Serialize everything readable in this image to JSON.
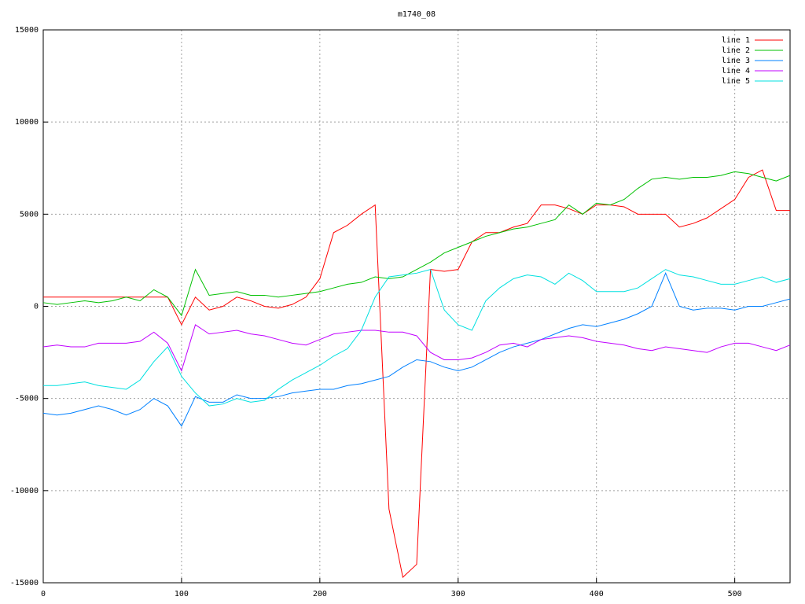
{
  "chart_data": {
    "type": "line",
    "title": "m1740_08",
    "x": [
      0,
      10,
      20,
      30,
      40,
      50,
      60,
      70,
      80,
      90,
      100,
      110,
      120,
      130,
      140,
      150,
      160,
      170,
      180,
      190,
      200,
      210,
      220,
      230,
      240,
      250,
      260,
      270,
      280,
      290,
      300,
      310,
      320,
      330,
      340,
      350,
      360,
      370,
      380,
      390,
      400,
      410,
      420,
      430,
      440,
      450,
      460,
      470,
      480,
      490,
      500,
      510,
      520,
      530,
      540
    ],
    "series": [
      {
        "name": "line 1",
        "color": "#ff0000",
        "values": [
          500,
          500,
          500,
          500,
          500,
          500,
          500,
          500,
          500,
          500,
          -1000,
          500,
          -200,
          0,
          500,
          300,
          0,
          -100,
          100,
          500,
          1500,
          4000,
          4400,
          5000,
          5500,
          -11000,
          -14700,
          -14000,
          2000,
          1900,
          2000,
          3500,
          4000,
          4000,
          4300,
          4500,
          5500,
          5500,
          5300,
          5000,
          5500,
          5500,
          5400,
          5000,
          5000,
          5000,
          4300,
          4500,
          4800,
          5300,
          5800,
          7000,
          7400,
          5200,
          5200
        ]
      },
      {
        "name": "line 2",
        "color": "#00c000",
        "values": [
          200,
          100,
          200,
          300,
          200,
          300,
          500,
          300,
          900,
          500,
          -500,
          2000,
          600,
          700,
          800,
          600,
          600,
          500,
          600,
          700,
          800,
          1000,
          1200,
          1300,
          1600,
          1500,
          1600,
          2000,
          2400,
          2900,
          3200,
          3500,
          3800,
          4000,
          4200,
          4300,
          4500,
          4700,
          5500,
          5000,
          5600,
          5500,
          5800,
          6400,
          6900,
          7000,
          6900,
          7000,
          7000,
          7100,
          7300,
          7200,
          7000,
          6800,
          7100
        ]
      },
      {
        "name": "line 3",
        "color": "#0080ff",
        "values": [
          -5800,
          -5900,
          -5800,
          -5600,
          -5400,
          -5600,
          -5900,
          -5600,
          -5000,
          -5400,
          -6500,
          -4900,
          -5200,
          -5200,
          -4800,
          -5000,
          -5000,
          -4900,
          -4700,
          -4600,
          -4500,
          -4500,
          -4300,
          -4200,
          -4000,
          -3800,
          -3300,
          -2900,
          -3000,
          -3300,
          -3500,
          -3300,
          -2900,
          -2500,
          -2200,
          -2000,
          -1800,
          -1500,
          -1200,
          -1000,
          -1100,
          -900,
          -700,
          -400,
          0,
          1800,
          0,
          -200,
          -100,
          -100,
          -200,
          0,
          0,
          200,
          400
        ]
      },
      {
        "name": "line 4",
        "color": "#c000ff",
        "values": [
          -2200,
          -2100,
          -2200,
          -2200,
          -2000,
          -2000,
          -2000,
          -1900,
          -1400,
          -2000,
          -3500,
          -1000,
          -1500,
          -1400,
          -1300,
          -1500,
          -1600,
          -1800,
          -2000,
          -2100,
          -1800,
          -1500,
          -1400,
          -1300,
          -1300,
          -1400,
          -1400,
          -1600,
          -2500,
          -2900,
          -2900,
          -2800,
          -2500,
          -2100,
          -2000,
          -2200,
          -1800,
          -1700,
          -1600,
          -1700,
          -1900,
          -2000,
          -2100,
          -2300,
          -2400,
          -2200,
          -2300,
          -2400,
          -2500,
          -2200,
          -2000,
          -2000,
          -2200,
          -2400,
          -2100
        ]
      },
      {
        "name": "line 5",
        "color": "#00e0e0",
        "values": [
          -4300,
          -4300,
          -4200,
          -4100,
          -4300,
          -4400,
          -4500,
          -4000,
          -3000,
          -2200,
          -3800,
          -4700,
          -5400,
          -5300,
          -5000,
          -5200,
          -5100,
          -4500,
          -4000,
          -3600,
          -3200,
          -2700,
          -2300,
          -1300,
          500,
          1600,
          1700,
          1800,
          2000,
          -200,
          -1000,
          -1300,
          300,
          1000,
          1500,
          1700,
          1600,
          1200,
          1800,
          1400,
          800,
          800,
          800,
          1000,
          1500,
          2000,
          1700,
          1600,
          1400,
          1200,
          1200,
          1400,
          1600,
          1300,
          1500
        ]
      }
    ],
    "xlim": [
      0,
      540
    ],
    "ylim": [
      -15000,
      15000
    ],
    "xticks": [
      0,
      100,
      200,
      300,
      400,
      500
    ],
    "yticks": [
      -15000,
      -10000,
      -5000,
      0,
      5000,
      10000,
      15000
    ],
    "grid": true,
    "legend": "top-right"
  }
}
